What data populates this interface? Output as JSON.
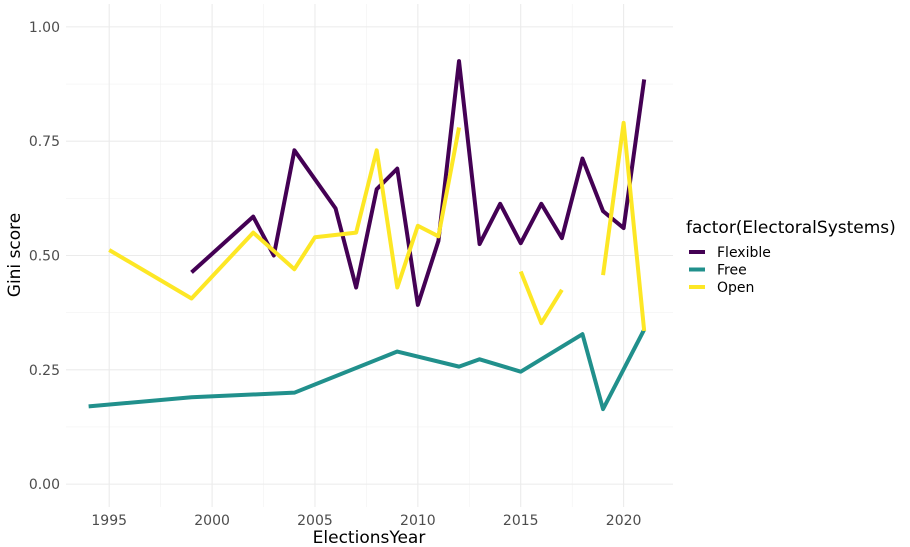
{
  "chart_data": {
    "type": "line",
    "title": "",
    "xlabel": "ElectionsYear",
    "ylabel": "Gini score",
    "xlim": [
      1992.9,
      2022.4
    ],
    "ylim": [
      -0.05,
      1.05
    ],
    "x_ticks": [
      1995,
      2000,
      2005,
      2010,
      2015,
      2020
    ],
    "x_tick_labels": [
      "1995",
      "2000",
      "2005",
      "2010",
      "2015",
      "2020"
    ],
    "y_ticks": [
      0,
      0.25,
      0.5,
      0.75,
      1.0
    ],
    "y_tick_labels": [
      "0.00",
      "0.25",
      "0.50",
      "0.75",
      "1.00"
    ],
    "grid": true,
    "legend": {
      "title": "factor(ElectoralSystems)",
      "placement": "right"
    },
    "series": [
      {
        "name": "Flexible",
        "color": "#440154",
        "segments": [
          [
            [
              1999,
              0.463
            ],
            [
              2002,
              0.585
            ],
            [
              2003,
              0.5
            ],
            [
              2004,
              0.73
            ],
            [
              2006,
              0.603
            ],
            [
              2007,
              0.43
            ],
            [
              2008,
              0.645
            ],
            [
              2009,
              0.69
            ],
            [
              2010,
              0.392
            ],
            [
              2011,
              0.532
            ],
            [
              2012,
              0.925
            ],
            [
              2013,
              0.525
            ],
            [
              2014,
              0.613
            ],
            [
              2015,
              0.527
            ],
            [
              2016,
              0.613
            ],
            [
              2017,
              0.538
            ],
            [
              2018,
              0.712
            ],
            [
              2019,
              0.597
            ],
            [
              2020,
              0.56
            ],
            [
              2021,
              0.885
            ]
          ]
        ]
      },
      {
        "name": "Free",
        "color": "#21908C",
        "segments": [
          [
            [
              1994,
              0.17
            ],
            [
              1999,
              0.19
            ],
            [
              2004,
              0.2
            ],
            [
              2009,
              0.29
            ],
            [
              2012,
              0.257
            ],
            [
              2013,
              0.273
            ],
            [
              2015,
              0.246
            ],
            [
              2018,
              0.328
            ],
            [
              2019,
              0.164
            ],
            [
              2021,
              0.338
            ]
          ]
        ]
      },
      {
        "name": "Open",
        "color": "#FDE725",
        "segments": [
          [
            [
              1995,
              0.512
            ],
            [
              1999,
              0.406
            ],
            [
              2002,
              0.55
            ],
            [
              2004,
              0.47
            ],
            [
              2005,
              0.54
            ],
            [
              2007,
              0.55
            ],
            [
              2008,
              0.73
            ],
            [
              2009,
              0.43
            ],
            [
              2010,
              0.565
            ],
            [
              2011,
              0.542
            ],
            [
              2012,
              0.78
            ]
          ],
          [
            [
              2015,
              0.465
            ],
            [
              2016,
              0.352
            ],
            [
              2017,
              0.425
            ]
          ],
          [
            [
              2019,
              0.457
            ],
            [
              2020,
              0.79
            ],
            [
              2021,
              0.335
            ]
          ]
        ]
      }
    ]
  }
}
